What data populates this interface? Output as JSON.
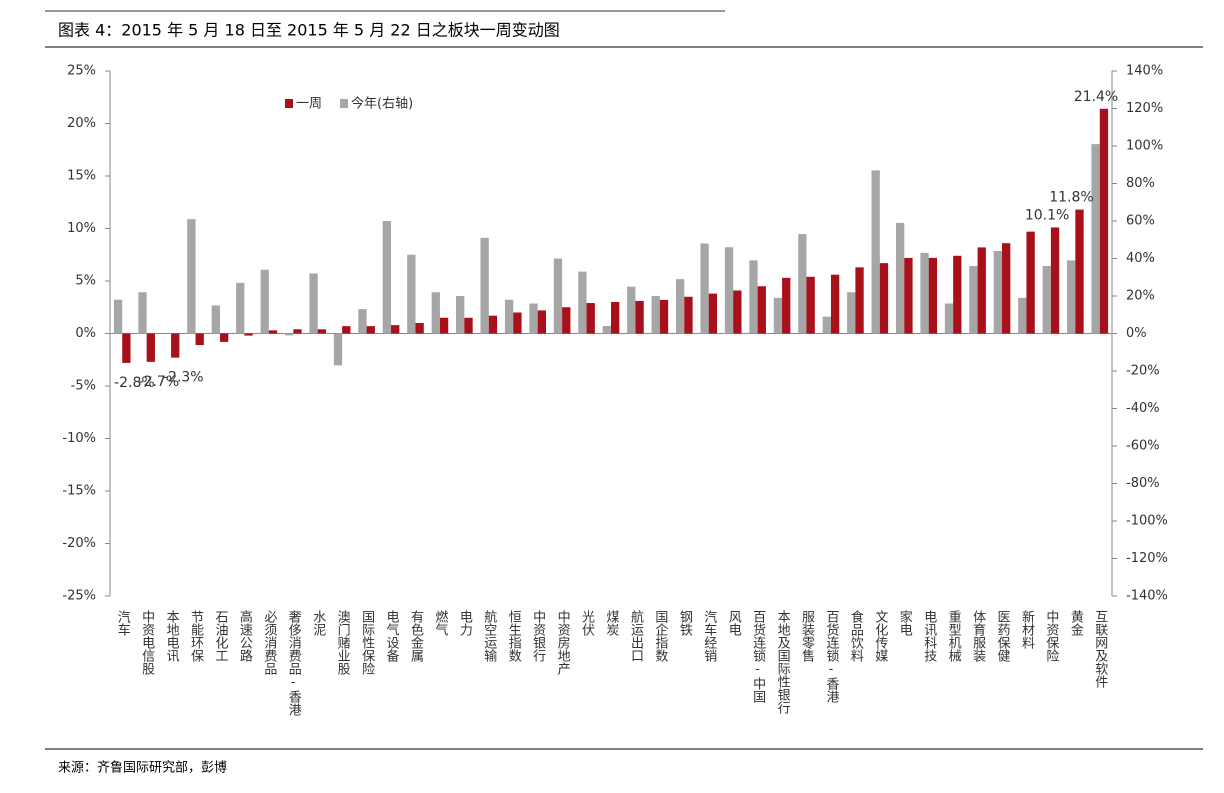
{
  "chart_data": {
    "type": "bar",
    "title": "图表 4：2015 年 5 月 18 日至 2015 年 5 月 22 日之板块一周变动图",
    "source": "来源：齐鲁国际研究部，彭博",
    "categories": [
      "汽车",
      "中资电信股",
      "本地电讯",
      "节能环保",
      "石油化工",
      "高速公路",
      "必须消费品",
      "奢侈消费品-香港",
      "水泥",
      "澳门赌业股",
      "国际性保险",
      "电气设备",
      "有色金属",
      "燃气",
      "电力",
      "航空运输",
      "恒生指数",
      "中资银行",
      "中资房地产",
      "光伏",
      "煤炭",
      "航运出口",
      "国企指数",
      "钢铁",
      "汽车经销",
      "风电",
      "百货连锁-中国",
      "本地及国际性银行",
      "服装零售",
      "百货连锁-香港",
      "食品饮料",
      "文化传媒",
      "家电",
      "电讯科技",
      "重型机械",
      "体育服装",
      "医药保健",
      "新材料",
      "中资保险",
      "黄金",
      "互联网及软件"
    ],
    "series": [
      {
        "name": "一周",
        "color": "#a8101a",
        "axis": "y",
        "values": [
          -2.8,
          -2.7,
          -2.3,
          -1.1,
          -0.8,
          -0.2,
          0.3,
          0.4,
          0.4,
          0.7,
          0.7,
          0.8,
          1.0,
          1.5,
          1.5,
          1.7,
          2.0,
          2.2,
          2.5,
          2.9,
          3.0,
          3.1,
          3.2,
          3.5,
          3.8,
          4.1,
          4.5,
          5.3,
          5.4,
          5.6,
          6.3,
          6.7,
          7.2,
          7.2,
          7.4,
          8.2,
          8.6,
          9.7,
          10.1,
          11.8,
          21.4
        ],
        "value_labels": [
          "-2.8%",
          "-2.7%",
          "-2.3%",
          null,
          null,
          null,
          null,
          null,
          null,
          null,
          null,
          null,
          null,
          null,
          null,
          null,
          null,
          null,
          null,
          null,
          null,
          null,
          null,
          null,
          null,
          null,
          null,
          null,
          null,
          null,
          null,
          null,
          null,
          null,
          null,
          null,
          null,
          null,
          "10.1%",
          "11.8%",
          "21.4%"
        ]
      },
      {
        "name": "今年(右轴)",
        "color": "#a6a6a6",
        "axis": "y2",
        "values": [
          18,
          22,
          0,
          61,
          15,
          27,
          34,
          -1,
          32,
          -17,
          13,
          60,
          42,
          22,
          20,
          51,
          18,
          16,
          40,
          33,
          4,
          25,
          20,
          29,
          48,
          46,
          39,
          19,
          53,
          9,
          22,
          87,
          59,
          43,
          16,
          36,
          44,
          19,
          36,
          39,
          101
        ]
      }
    ],
    "ylim": [
      -25,
      25
    ],
    "yticks": [
      {
        "value": -25,
        "label": "-25%"
      },
      {
        "value": -20,
        "label": "-20%"
      },
      {
        "value": -15,
        "label": "-15%"
      },
      {
        "value": -10,
        "label": "-10%"
      },
      {
        "value": -5,
        "label": "-5%"
      },
      {
        "value": 0,
        "label": "0%"
      },
      {
        "value": 5,
        "label": "5%"
      },
      {
        "value": 10,
        "label": "10%"
      },
      {
        "value": 15,
        "label": "15%"
      },
      {
        "value": 20,
        "label": "20%"
      },
      {
        "value": 25,
        "label": "25%"
      }
    ],
    "y2lim": [
      -140,
      140
    ],
    "y2ticks": [
      {
        "value": -140,
        "label": "-140%"
      },
      {
        "value": -120,
        "label": "-120%"
      },
      {
        "value": -100,
        "label": "-100%"
      },
      {
        "value": -80,
        "label": "-80%"
      },
      {
        "value": -60,
        "label": "-60%"
      },
      {
        "value": -40,
        "label": "-40%"
      },
      {
        "value": -20,
        "label": "-20%"
      },
      {
        "value": 0,
        "label": "0%"
      },
      {
        "value": 20,
        "label": "20%"
      },
      {
        "value": 40,
        "label": "40%"
      },
      {
        "value": 60,
        "label": "60%"
      },
      {
        "value": 80,
        "label": "80%"
      },
      {
        "value": 100,
        "label": "100%"
      },
      {
        "value": 120,
        "label": "120%"
      },
      {
        "value": 140,
        "label": "140%"
      }
    ],
    "grid": false
  }
}
